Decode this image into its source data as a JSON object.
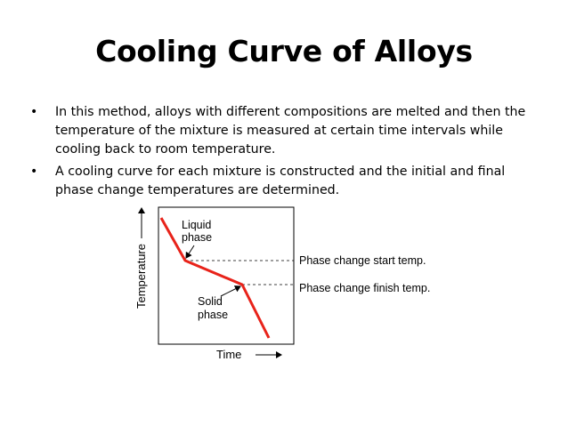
{
  "slide": {
    "title": "Cooling Curve of Alloys",
    "bullets": [
      "In this method, alloys with different compositions are melted and then the temperature of the mixture is measured at certain time intervals while cooling back to room temperature.",
      " A cooling curve for each mixture is constructed and the initial and final phase change temperatures are determined."
    ],
    "bullet_symbol": "•"
  },
  "diagram": {
    "y_axis_label": "Temperature",
    "x_axis_label": "Time",
    "region_labels": {
      "liquid_line1": "Liquid",
      "liquid_line2": "phase",
      "solid_line1": "Solid",
      "solid_line2": "phase"
    },
    "annotations": {
      "start": "Phase change start temp.",
      "finish": "Phase change finish temp."
    },
    "curve_color": "#e8231a",
    "line_color": "#000000"
  }
}
